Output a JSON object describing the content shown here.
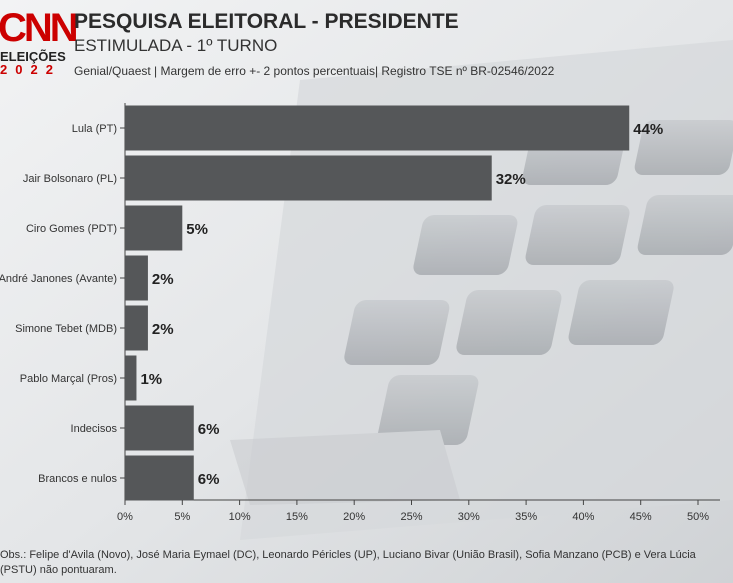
{
  "header": {
    "logo_brand": "CNN",
    "logo_line": "ELEIÇÕES",
    "logo_year": "2022",
    "title": "PESQUISA ELEITORAL - PRESIDENTE",
    "subtitle": "ESTIMULADA - 1º TURNO",
    "source": "Genial/Quaest | Margem de erro +- 2 pontos percentuais| Registro TSE nº BR-02546/2022"
  },
  "footer": {
    "obs": "Obs.: Felipe d'Avila (Novo), José Maria Eymael (DC), Leonardo Péricles (UP), Luciano Bivar (União Brasil), Sofia Manzano (PCB) e Vera Lúcia (PSTU) não pontuaram."
  },
  "colors": {
    "bar": "#555759",
    "accent": "#cc0000",
    "text": "#2b2b2b"
  },
  "chart_data": {
    "type": "bar",
    "orientation": "horizontal",
    "categories": [
      "Lula (PT)",
      "Jair Bolsonaro (PL)",
      "Ciro Gomes (PDT)",
      "André Janones (Avante)",
      "Simone Tebet (MDB)",
      "Pablo Marçal (Pros)",
      "Indecisos",
      "Brancos e nulos"
    ],
    "values": [
      44,
      32,
      5,
      2,
      2,
      1,
      6,
      6
    ],
    "data_labels": [
      "44%",
      "32%",
      "5%",
      "2%",
      "2%",
      "1%",
      "6%",
      "6%"
    ],
    "xlim": [
      0,
      50
    ],
    "xticks": [
      "0%",
      "5%",
      "10%",
      "15%",
      "20%",
      "25%",
      "30%",
      "35%",
      "40%",
      "45%",
      "50%"
    ],
    "grid": false,
    "legend": "none"
  }
}
